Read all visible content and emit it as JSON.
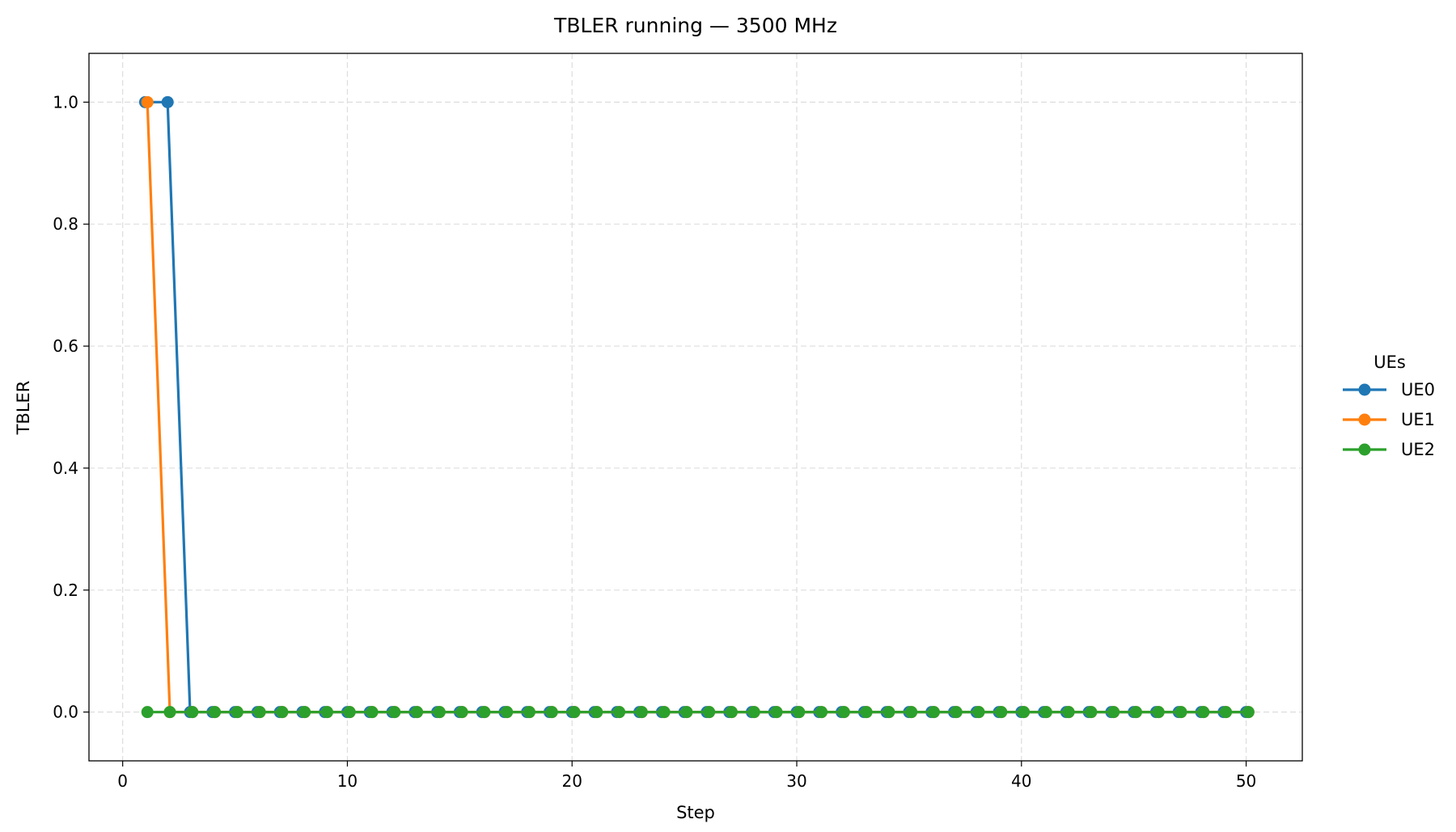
{
  "chart_data": {
    "type": "line",
    "title": "TBLER running — 3500 MHz",
    "xlabel": "Step",
    "ylabel": "TBLER",
    "xlim": [
      -1.5,
      52.5
    ],
    "ylim": [
      -0.08,
      1.08
    ],
    "xticks": [
      0,
      10,
      20,
      30,
      40,
      50
    ],
    "yticks": [
      0.0,
      0.2,
      0.4,
      0.6,
      0.8,
      1.0
    ],
    "ytick_labels": [
      "0.0",
      "0.2",
      "0.4",
      "0.6",
      "0.8",
      "1.0"
    ],
    "grid": true,
    "legend": {
      "title": "UEs",
      "placement": "right-outside"
    },
    "series": [
      {
        "name": "UE0",
        "color": "#1f77b4",
        "x": [
          1,
          2,
          3,
          4,
          5,
          6,
          7,
          8,
          9,
          10,
          11,
          12,
          13,
          14,
          15,
          16,
          17,
          18,
          19,
          20,
          21,
          22,
          23,
          24,
          25,
          26,
          27,
          28,
          29,
          30,
          31,
          32,
          33,
          34,
          35,
          36,
          37,
          38,
          39,
          40,
          41,
          42,
          43,
          44,
          45,
          46,
          47,
          48,
          49,
          50
        ],
        "y": [
          1,
          1,
          0,
          0,
          0,
          0,
          0,
          0,
          0,
          0,
          0,
          0,
          0,
          0,
          0,
          0,
          0,
          0,
          0,
          0,
          0,
          0,
          0,
          0,
          0,
          0,
          0,
          0,
          0,
          0,
          0,
          0,
          0,
          0,
          0,
          0,
          0,
          0,
          0,
          0,
          0,
          0,
          0,
          0,
          0,
          0,
          0,
          0,
          0,
          0
        ]
      },
      {
        "name": "UE1",
        "color": "#ff7f0e",
        "x": [
          1.1,
          2.1,
          3.1,
          4.1,
          5.1,
          6.1,
          7.1,
          8.1,
          9.1,
          10.1,
          11.1,
          12.1,
          13.1,
          14.1,
          15.1,
          16.1,
          17.1,
          18.1,
          19.1,
          20.1,
          21.1,
          22.1,
          23.1,
          24.1,
          25.1,
          26.1,
          27.1,
          28.1,
          29.1,
          30.1,
          31.1,
          32.1,
          33.1,
          34.1,
          35.1,
          36.1,
          37.1,
          38.1,
          39.1,
          40.1,
          41.1,
          42.1,
          43.1,
          44.1,
          45.1,
          46.1,
          47.1,
          48.1,
          49.1,
          50.1
        ],
        "y": [
          1,
          0,
          0,
          0,
          0,
          0,
          0,
          0,
          0,
          0,
          0,
          0,
          0,
          0,
          0,
          0,
          0,
          0,
          0,
          0,
          0,
          0,
          0,
          0,
          0,
          0,
          0,
          0,
          0,
          0,
          0,
          0,
          0,
          0,
          0,
          0,
          0,
          0,
          0,
          0,
          0,
          0,
          0,
          0,
          0,
          0,
          0,
          0,
          0,
          0
        ]
      },
      {
        "name": "UE2",
        "color": "#2ca02c",
        "x": [
          1.1,
          2.1,
          3.1,
          4.1,
          5.1,
          6.1,
          7.1,
          8.1,
          9.1,
          10.1,
          11.1,
          12.1,
          13.1,
          14.1,
          15.1,
          16.1,
          17.1,
          18.1,
          19.1,
          20.1,
          21.1,
          22.1,
          23.1,
          24.1,
          25.1,
          26.1,
          27.1,
          28.1,
          29.1,
          30.1,
          31.1,
          32.1,
          33.1,
          34.1,
          35.1,
          36.1,
          37.1,
          38.1,
          39.1,
          40.1,
          41.1,
          42.1,
          43.1,
          44.1,
          45.1,
          46.1,
          47.1,
          48.1,
          49.1,
          50.1
        ],
        "y": [
          0,
          0,
          0,
          0,
          0,
          0,
          0,
          0,
          0,
          0,
          0,
          0,
          0,
          0,
          0,
          0,
          0,
          0,
          0,
          0,
          0,
          0,
          0,
          0,
          0,
          0,
          0,
          0,
          0,
          0,
          0,
          0,
          0,
          0,
          0,
          0,
          0,
          0,
          0,
          0,
          0,
          0,
          0,
          0,
          0,
          0,
          0,
          0,
          0,
          0
        ]
      }
    ]
  }
}
